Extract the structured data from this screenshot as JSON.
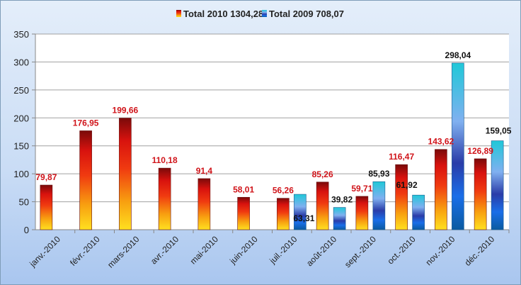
{
  "chart_data": {
    "type": "bar",
    "title": "",
    "xlabel": "",
    "ylabel": "",
    "ylim": [
      0,
      350
    ],
    "yticks": [
      0,
      50,
      100,
      150,
      200,
      250,
      300,
      350
    ],
    "grid": true,
    "legend_position": "top-center",
    "categories": [
      "janv.-2010",
      "févr.-2010",
      "mars-2010",
      "avr.-2010",
      "mai-2010",
      "juin-2010",
      "juil.-2010",
      "août-2010",
      "sept.-2010",
      "oct.-2010",
      "nov.-2010",
      "déc.-2010"
    ],
    "series": [
      {
        "name": "Total 2010 1304,28",
        "color": "#e0201a",
        "values": [
          79.87,
          176.95,
          199.66,
          110.18,
          91.4,
          58.01,
          56.26,
          85.26,
          59.71,
          116.47,
          143.62,
          126.89
        ],
        "labels": [
          "79,87",
          "176,95",
          "199,66",
          "110,18",
          "91,4",
          "58,01",
          "56,26",
          "85,26",
          "59,71",
          "116,47",
          "143,62",
          "126,89"
        ]
      },
      {
        "name": "Total 2009 708,07",
        "color": "#2a7fe0",
        "values": [
          null,
          null,
          null,
          null,
          null,
          null,
          63.31,
          39.82,
          85.93,
          61.92,
          298.04,
          159.05
        ],
        "labels": [
          null,
          null,
          null,
          null,
          null,
          null,
          "63,31",
          "39,82",
          "85,93",
          "61,92",
          "298,04",
          "159,05"
        ]
      }
    ]
  }
}
